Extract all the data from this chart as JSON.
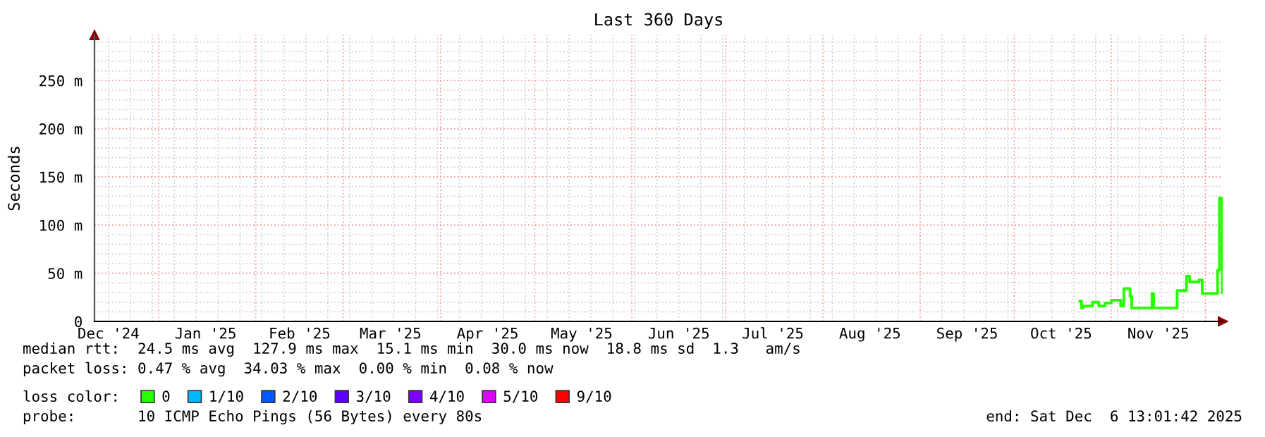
{
  "chart_data": {
    "type": "step",
    "title": "Last 360 Days",
    "ylabel": "Seconds",
    "xlim": [
      "2024-12-11T13:01",
      "2025-12-06T13:01"
    ],
    "xticks": [
      {
        "value": "2024-12-16",
        "label": "Dec '24"
      },
      {
        "value": "2025-01-16",
        "label": "Jan '25"
      },
      {
        "value": "2025-02-15",
        "label": "Feb '25"
      },
      {
        "value": "2025-03-16",
        "label": "Mar '25"
      },
      {
        "value": "2025-04-16",
        "label": "Apr '25"
      },
      {
        "value": "2025-05-16",
        "label": "May '25"
      },
      {
        "value": "2025-06-16",
        "label": "Jun '25"
      },
      {
        "value": "2025-07-16",
        "label": "Jul '25"
      },
      {
        "value": "2025-08-16",
        "label": "Aug '25"
      },
      {
        "value": "2025-09-16",
        "label": "Sep '25"
      },
      {
        "value": "2025-10-16",
        "label": "Oct '25"
      },
      {
        "value": "2025-11-16",
        "label": "Nov '25"
      }
    ],
    "ylim": [
      0,
      297
    ],
    "yticks": [
      0,
      {
        "value": 50,
        "label": "50 m"
      },
      {
        "value": 100,
        "label": "100 m"
      },
      {
        "value": 150,
        "label": "150 m"
      },
      {
        "value": 200,
        "label": "200 m"
      },
      {
        "value": 250,
        "label": "250 m"
      }
    ],
    "grid": true,
    "legend": "bottom",
    "line_style": "solid",
    "marker": "none",
    "x": [
      "2025-10-22",
      "2025-10-22T12:00",
      "2025-10-23",
      "2025-10-26",
      "2025-10-28",
      "2025-10-30",
      "2025-11-01",
      "2025-11-04",
      "2025-11-05",
      "2025-11-07",
      "2025-11-07T12:00",
      "2025-11-13",
      "2025-11-14",
      "2025-11-14T12:00",
      "2025-11-21",
      "2025-11-22",
      "2025-11-25",
      "2025-11-26",
      "2025-11-29",
      "2025-11-30",
      "2025-12-04",
      "2025-12-04T22:00",
      "2025-12-05T12:00",
      "2025-12-06T10:00"
    ],
    "series": [
      {
        "color": "#26ff00",
        "values": [
          21,
          14,
          16,
          20,
          16,
          19,
          22,
          16,
          34,
          26,
          14,
          14,
          29,
          14,
          14,
          32,
          47,
          41,
          43,
          29,
          29,
          53,
          128,
          30
        ]
      },
      {
        "name": "0",
        "color": "#26ff00",
        "values": [
          null,
          null,
          null,
          null,
          null,
          null,
          null,
          null,
          null,
          null,
          null,
          null,
          null,
          null,
          null,
          null,
          null,
          null,
          null,
          null,
          null,
          null,
          null,
          null
        ]
      },
      {
        "name": "1/10",
        "color": "#00b8ff",
        "values": [
          null,
          null,
          null,
          null,
          null,
          null,
          null,
          null,
          null,
          null,
          null,
          null,
          null,
          null,
          null,
          null,
          null,
          null,
          null,
          null,
          null,
          null,
          null,
          null
        ]
      },
      {
        "name": "2/10",
        "color": "#0059ff",
        "values": [
          null,
          null,
          null,
          null,
          null,
          null,
          null,
          null,
          null,
          null,
          null,
          null,
          null,
          null,
          null,
          null,
          null,
          null,
          null,
          null,
          null,
          null,
          null,
          null
        ]
      },
      {
        "name": "3/10",
        "color": "#5e00ff",
        "values": [
          null,
          null,
          null,
          null,
          null,
          null,
          null,
          null,
          null,
          null,
          null,
          null,
          null,
          null,
          null,
          null,
          null,
          null,
          null,
          null,
          null,
          null,
          null,
          null
        ]
      },
      {
        "name": "4/10",
        "color": "#7e00ff",
        "values": [
          null,
          null,
          null,
          null,
          null,
          null,
          null,
          null,
          null,
          null,
          null,
          null,
          null,
          null,
          null,
          null,
          null,
          null,
          null,
          null,
          null,
          null,
          null,
          null
        ]
      },
      {
        "name": "5/10",
        "color": "#dd00ff",
        "values": [
          null,
          null,
          null,
          null,
          null,
          null,
          null,
          null,
          null,
          null,
          null,
          null,
          null,
          null,
          null,
          null,
          null,
          null,
          null,
          null,
          null,
          null,
          null,
          null
        ]
      },
      {
        "name": "9/10",
        "color": "#ff0000",
        "values": [
          null,
          null,
          null,
          null,
          null,
          null,
          null,
          null,
          null,
          null,
          null,
          null,
          null,
          null,
          null,
          null,
          null,
          null,
          null,
          null,
          null,
          null,
          null,
          null
        ]
      }
    ],
    "legend_title": "loss color:",
    "annotations": [
      "median rtt:  24.5 ms avg  127.9 ms max  15.1 ms min  30.0 ms now  18.8 ms sd  1.3   am/s",
      "packet loss: 0.47 % avg  34.03 % max  0.00 % min  0.08 % now",
      "probe:       10 ICMP Echo Pings (56 Bytes) every 80s",
      "end: Sat Dec  6 13:01:42 2025"
    ]
  }
}
